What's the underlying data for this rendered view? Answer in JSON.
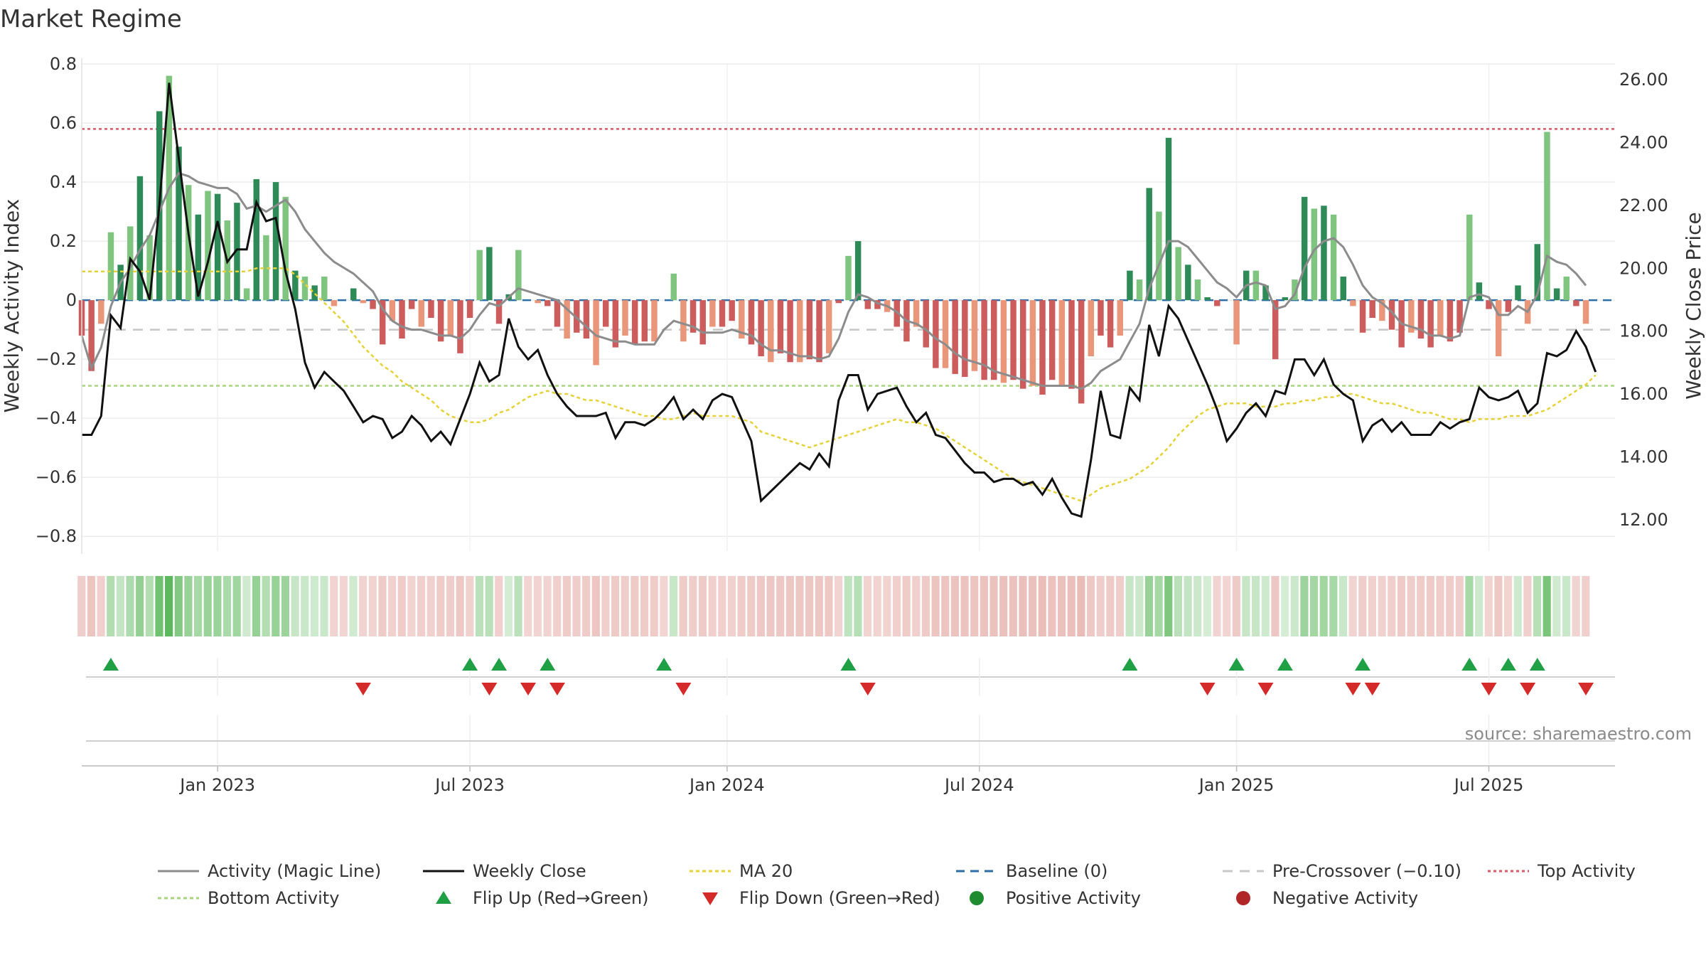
{
  "chart_data": {
    "type": "bar",
    "title": "Market Regime",
    "source": "source: sharemaestro.com",
    "ylabel_left": "Weekly Activity Index",
    "ylabel_right": "Weekly Close Price",
    "ylim_left": [
      -0.85,
      0.8
    ],
    "ylim_right": [
      11.0,
      26.5
    ],
    "yticks_left": [
      0.8,
      0.6,
      0.4,
      0.2,
      0,
      -0.2,
      -0.4,
      -0.6,
      -0.8
    ],
    "yticks_left_labels": [
      "0.8",
      "0.6",
      "0.4",
      "0.2",
      "0",
      "−0.2",
      "−0.4",
      "−0.6",
      "−0.8"
    ],
    "yticks_right": [
      26,
      24,
      22,
      20,
      18,
      16,
      14,
      12
    ],
    "yticks_right_labels": [
      "26.00",
      "24.00",
      "22.00",
      "20.00",
      "18.00",
      "16.00",
      "14.00",
      "12.00"
    ],
    "x_range": [
      0,
      158
    ],
    "xticks": [
      {
        "x": 14,
        "label": "Jan 2023"
      },
      {
        "x": 40,
        "label": "Jul 2023"
      },
      {
        "x": 66.5,
        "label": "Jan 2024"
      },
      {
        "x": 92.5,
        "label": "Jul 2024"
      },
      {
        "x": 119,
        "label": "Jan 2025"
      },
      {
        "x": 145,
        "label": "Jul 2025"
      }
    ],
    "grid": true,
    "legend_position": "bottom",
    "reference_lines": {
      "baseline": 0,
      "pre_crossover": -0.1,
      "top_activity": 0.58,
      "bottom_activity": -0.29
    },
    "activity": [
      -0.12,
      -0.24,
      -0.08,
      0.23,
      0.12,
      0.25,
      0.42,
      0.22,
      0.64,
      0.76,
      0.52,
      0.39,
      0.29,
      0.37,
      0.36,
      0.27,
      0.33,
      0.04,
      0.41,
      0.22,
      0.4,
      0.35,
      0.1,
      0.08,
      0.05,
      0.08,
      -0.02,
      0,
      0.04,
      -0.01,
      -0.03,
      -0.15,
      -0.07,
      -0.13,
      -0.03,
      -0.09,
      -0.06,
      -0.14,
      -0.12,
      -0.18,
      -0.06,
      0.17,
      0.18,
      -0.08,
      0.02,
      0.17,
      0,
      -0.01,
      -0.02,
      -0.09,
      -0.13,
      -0.11,
      -0.13,
      -0.22,
      -0.09,
      -0.16,
      -0.12,
      -0.15,
      -0.14,
      -0.14,
      0,
      0.09,
      -0.14,
      -0.11,
      -0.15,
      -0.09,
      -0.09,
      -0.07,
      -0.13,
      -0.15,
      -0.19,
      -0.21,
      -0.18,
      -0.21,
      -0.21,
      -0.2,
      -0.21,
      -0.18,
      -0.01,
      0.15,
      0.2,
      -0.03,
      -0.03,
      -0.04,
      -0.09,
      -0.14,
      -0.09,
      -0.16,
      -0.23,
      -0.23,
      -0.25,
      -0.26,
      -0.24,
      -0.27,
      -0.27,
      -0.28,
      -0.27,
      -0.3,
      -0.29,
      -0.32,
      -0.27,
      -0.29,
      -0.3,
      -0.35,
      -0.19,
      -0.12,
      -0.16,
      -0.12,
      0.1,
      0.07,
      0.38,
      0.3,
      0.55,
      0.18,
      0.12,
      0.07,
      0.01,
      -0.02,
      0,
      -0.15,
      0.1,
      0.1,
      0.05,
      -0.2,
      0.01,
      0.07,
      0.35,
      0.31,
      0.32,
      0.29,
      0.08,
      -0.02,
      -0.11,
      -0.06,
      -0.07,
      -0.1,
      -0.16,
      -0.11,
      -0.13,
      -0.16,
      -0.12,
      -0.14,
      -0.11,
      0.29,
      0.06,
      -0.03,
      -0.19,
      -0.04,
      0.05,
      -0.08,
      0.19,
      0.57,
      0.04,
      0.08,
      -0.02,
      -0.08
    ],
    "activity_magic_line": [
      -0.12,
      -0.23,
      -0.16,
      -0.02,
      0.06,
      0.11,
      0.17,
      0.22,
      0.3,
      0.38,
      0.43,
      0.42,
      0.4,
      0.39,
      0.38,
      0.38,
      0.36,
      0.31,
      0.32,
      0.3,
      0.32,
      0.34,
      0.3,
      0.24,
      0.2,
      0.16,
      0.13,
      0.11,
      0.09,
      0.06,
      0.03,
      -0.03,
      -0.07,
      -0.09,
      -0.1,
      -0.1,
      -0.11,
      -0.12,
      -0.12,
      -0.13,
      -0.1,
      -0.05,
      -0.01,
      -0.02,
      0.01,
      0.04,
      0.03,
      0.02,
      0.01,
      0,
      -0.03,
      -0.06,
      -0.09,
      -0.12,
      -0.13,
      -0.14,
      -0.14,
      -0.15,
      -0.15,
      -0.15,
      -0.1,
      -0.07,
      -0.08,
      -0.09,
      -0.11,
      -0.11,
      -0.11,
      -0.1,
      -0.11,
      -0.12,
      -0.15,
      -0.17,
      -0.17,
      -0.18,
      -0.19,
      -0.19,
      -0.2,
      -0.19,
      -0.13,
      -0.04,
      0.02,
      0.01,
      -0.01,
      -0.02,
      -0.04,
      -0.07,
      -0.08,
      -0.1,
      -0.13,
      -0.15,
      -0.18,
      -0.2,
      -0.21,
      -0.22,
      -0.24,
      -0.25,
      -0.26,
      -0.27,
      -0.28,
      -0.29,
      -0.29,
      -0.29,
      -0.29,
      -0.3,
      -0.28,
      -0.24,
      -0.22,
      -0.2,
      -0.14,
      -0.08,
      0.04,
      0.12,
      0.2,
      0.2,
      0.18,
      0.14,
      0.1,
      0.06,
      0.04,
      0.01,
      0.05,
      0.06,
      0.05,
      -0.03,
      -0.02,
      0.02,
      0.11,
      0.17,
      0.2,
      0.21,
      0.18,
      0.12,
      0.05,
      0.01,
      -0.01,
      -0.04,
      -0.08,
      -0.09,
      -0.1,
      -0.12,
      -0.12,
      -0.13,
      -0.12,
      0.01,
      0.02,
      0.01,
      -0.05,
      -0.05,
      -0.02,
      -0.04,
      0.02,
      0.15,
      0.13,
      0.12,
      0.09,
      0.05
    ],
    "weekly_close": [
      14.7,
      14.7,
      15.3,
      18.5,
      18.1,
      20.3,
      19.9,
      19,
      22,
      25.9,
      23.5,
      21.1,
      19.1,
      20.2,
      21.5,
      20.2,
      20.6,
      20.6,
      22.1,
      21.5,
      21.6,
      19.9,
      18.7,
      17,
      16.2,
      16.7,
      16.4,
      16.1,
      15.6,
      15.1,
      15.3,
      15.2,
      14.6,
      14.8,
      15.3,
      15,
      14.5,
      14.8,
      14.4,
      15.2,
      16,
      17,
      16.4,
      16.6,
      18.4,
      17.5,
      17.1,
      17.4,
      16.6,
      16,
      15.6,
      15.3,
      15.3,
      15.3,
      15.4,
      14.6,
      15.1,
      15.1,
      15,
      15.2,
      15.5,
      15.9,
      15.2,
      15.5,
      15.2,
      15.8,
      16,
      15.9,
      15.2,
      14.5,
      12.6,
      12.9,
      13.2,
      13.5,
      13.8,
      13.6,
      14.1,
      13.7,
      15.8,
      16.6,
      16.6,
      15.5,
      16,
      16.1,
      16.2,
      15.6,
      15.1,
      15.4,
      14.7,
      14.6,
      14.2,
      13.8,
      13.5,
      13.5,
      13.2,
      13.3,
      13.3,
      13.1,
      13.2,
      12.8,
      13.3,
      12.7,
      12.2,
      12.1,
      13.9,
      16.1,
      14.7,
      14.6,
      16.2,
      15.8,
      18.2,
      17.2,
      18.8,
      18.4,
      17.7,
      17,
      16.3,
      15.5,
      14.5,
      14.9,
      15.4,
      15.7,
      15.3,
      16.1,
      16,
      17.1,
      17.1,
      16.6,
      17.1,
      16.3,
      16,
      15.8,
      14.5,
      15,
      15.2,
      14.8,
      15.1,
      14.7,
      14.7,
      14.7,
      15.1,
      14.9,
      15.1,
      15.2,
      16.2,
      15.9,
      15.8,
      15.9,
      16.1,
      15.4,
      15.7,
      17.3,
      17.2,
      17.4,
      18,
      17.5,
      16.7
    ],
    "ma20": [
      19.9,
      19.9,
      19.9,
      19.9,
      19.9,
      19.9,
      19.9,
      19.9,
      19.9,
      19.9,
      19.9,
      19.9,
      19.9,
      19.9,
      19.9,
      19.9,
      19.9,
      19.9,
      20,
      20,
      20,
      20,
      19.8,
      19.5,
      19.2,
      18.9,
      18.6,
      18.3,
      17.9,
      17.5,
      17.2,
      16.9,
      16.7,
      16.4,
      16.2,
      16,
      15.8,
      15.5,
      15.3,
      15.2,
      15.1,
      15.1,
      15.2,
      15.4,
      15.5,
      15.7,
      15.9,
      16,
      16.1,
      16,
      16,
      15.9,
      15.8,
      15.8,
      15.7,
      15.6,
      15.5,
      15.4,
      15.3,
      15.3,
      15.2,
      15.2,
      15.3,
      15.4,
      15.3,
      15.3,
      15.3,
      15.3,
      15.2,
      15.1,
      14.8,
      14.7,
      14.6,
      14.5,
      14.4,
      14.3,
      14.4,
      14.5,
      14.6,
      14.7,
      14.8,
      14.9,
      15,
      15.1,
      15.2,
      15.1,
      15.1,
      15,
      14.9,
      14.7,
      14.5,
      14.3,
      14.1,
      13.9,
      13.7,
      13.5,
      13.3,
      13.2,
      13.1,
      13,
      12.9,
      12.8,
      12.7,
      12.6,
      12.8,
      13,
      13.1,
      13.2,
      13.3,
      13.5,
      13.7,
      14,
      14.3,
      14.7,
      15,
      15.3,
      15.5,
      15.6,
      15.7,
      15.7,
      15.7,
      15.6,
      15.6,
      15.6,
      15.7,
      15.7,
      15.8,
      15.8,
      15.9,
      15.9,
      16,
      16,
      15.9,
      15.8,
      15.7,
      15.7,
      15.6,
      15.5,
      15.4,
      15.4,
      15.3,
      15.2,
      15.2,
      15.1,
      15.2,
      15.2,
      15.2,
      15.3,
      15.3,
      15.3,
      15.4,
      15.5,
      15.7,
      15.9,
      16.1,
      16.3,
      16.6
    ],
    "flip_up": [
      3,
      40,
      43,
      48,
      60,
      79,
      108,
      119,
      124,
      132,
      143,
      147,
      150
    ],
    "flip_down": [
      29,
      42,
      46,
      49,
      62,
      81,
      116,
      122,
      131,
      133,
      145,
      149,
      155
    ],
    "legend": [
      {
        "label": "Activity (Magic Line)",
        "kind": "line",
        "color": "#8c8c8c",
        "dash": ""
      },
      {
        "label": "Weekly Close",
        "kind": "line",
        "color": "#111111",
        "dash": ""
      },
      {
        "label": "MA 20",
        "kind": "line",
        "color": "#e6d236",
        "dash": "5,4"
      },
      {
        "label": "Baseline (0)",
        "kind": "line",
        "color": "#2b6ea8",
        "dash": "12,8"
      },
      {
        "label": "Pre-Crossover (−0.10)",
        "kind": "line",
        "color": "#c8c8c8",
        "dash": "14,10"
      },
      {
        "label": "Top Activity",
        "kind": "line",
        "color": "#e05566",
        "dash": "4,4"
      },
      {
        "label": "Bottom Activity",
        "kind": "line",
        "color": "#a8d67c",
        "dash": "5,4"
      },
      {
        "label": "Flip Up (Red→Green)",
        "kind": "tri-up",
        "color": "#1fa045",
        "dash": ""
      },
      {
        "label": "Flip Down (Green→Red)",
        "kind": "tri-down",
        "color": "#d42a2a",
        "dash": ""
      },
      {
        "label": "Positive Activity",
        "kind": "dot",
        "color": "#1e8c2e",
        "dash": ""
      },
      {
        "label": "Negative Activity",
        "kind": "dot",
        "color": "#b02525",
        "dash": ""
      }
    ],
    "colors": {
      "pos_dark": "#2e8b57",
      "pos_light": "#7fc47f",
      "neg_dark": "#cd5c5c",
      "neg_light": "#e9967a",
      "strip_pos": "#5cb85c",
      "strip_neg": "#d98880"
    }
  }
}
